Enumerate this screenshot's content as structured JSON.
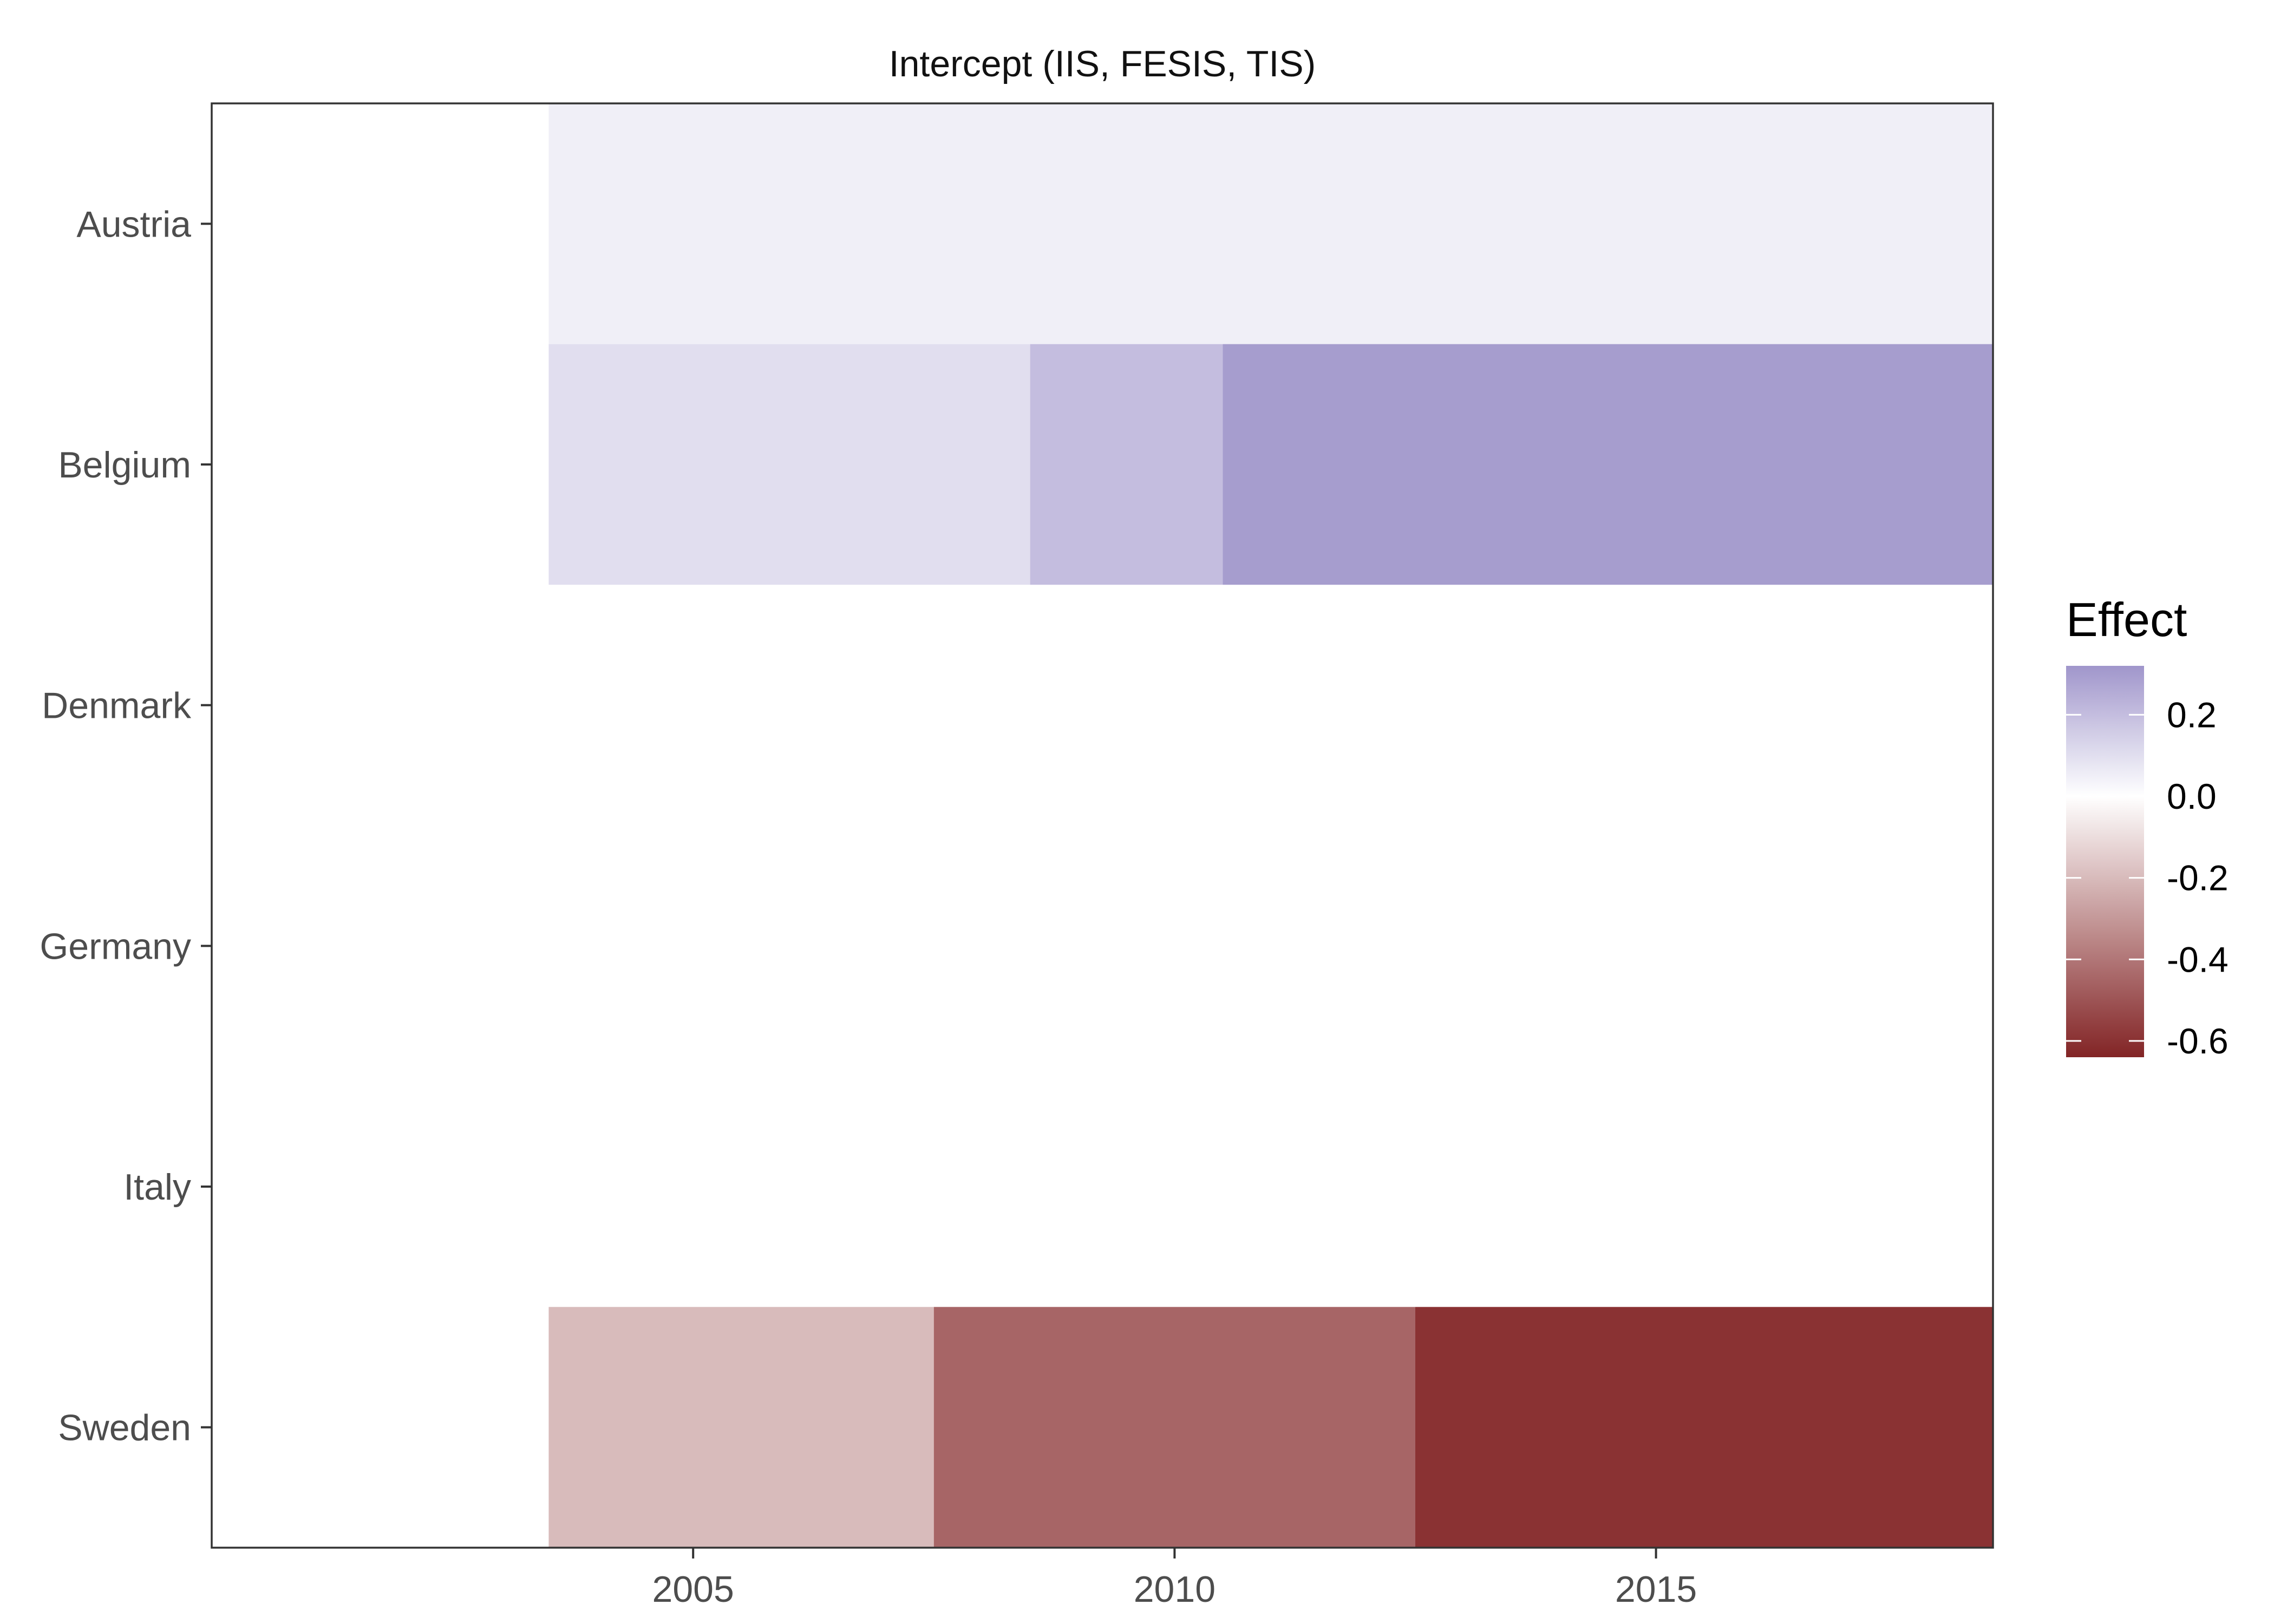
{
  "chart_data": {
    "type": "heatmap",
    "title": "Intercept (IIS, FESIS, TIS)",
    "xlabel": "",
    "ylabel": "",
    "x_range": [
      2000.0,
      2018.5
    ],
    "x_ticks": [
      "2005",
      "2010",
      "2015"
    ],
    "categories": [
      "Austria",
      "Belgium",
      "Denmark",
      "Germany",
      "Italy",
      "Sweden"
    ],
    "cells": [
      {
        "row": "Austria",
        "x_start": 2003.5,
        "x_end": 2018.5,
        "value": 0.05
      },
      {
        "row": "Belgium",
        "x_start": 2003.5,
        "x_end": 2008.5,
        "value": 0.1
      },
      {
        "row": "Belgium",
        "x_start": 2008.5,
        "x_end": 2010.5,
        "value": 0.2
      },
      {
        "row": "Belgium",
        "x_start": 2010.5,
        "x_end": 2018.5,
        "value": 0.3
      },
      {
        "row": "Denmark",
        "x_start": 2003.5,
        "x_end": 2018.5,
        "value": 0.0
      },
      {
        "row": "Germany",
        "x_start": 2003.5,
        "x_end": 2018.5,
        "value": 0.0
      },
      {
        "row": "Italy",
        "x_start": 2003.5,
        "x_end": 2018.5,
        "value": 0.0
      },
      {
        "row": "Sweden",
        "x_start": 2003.5,
        "x_end": 2007.5,
        "value": -0.2
      },
      {
        "row": "Sweden",
        "x_start": 2007.5,
        "x_end": 2012.5,
        "value": -0.45
      },
      {
        "row": "Sweden",
        "x_start": 2012.5,
        "x_end": 2018.5,
        "value": -0.6
      }
    ],
    "legend": {
      "title": "Effect",
      "position": "right",
      "range": [
        -0.64,
        0.32
      ],
      "ticks": [
        0.2,
        0.0,
        -0.2,
        -0.4,
        -0.6
      ],
      "tick_labels": [
        "0.2",
        "0.0",
        "-0.2",
        "-0.4",
        "-0.6"
      ]
    },
    "colors": {
      "positive": "#a096cb",
      "zero": "#ffffff",
      "negative": "#822425"
    },
    "grid": false
  }
}
